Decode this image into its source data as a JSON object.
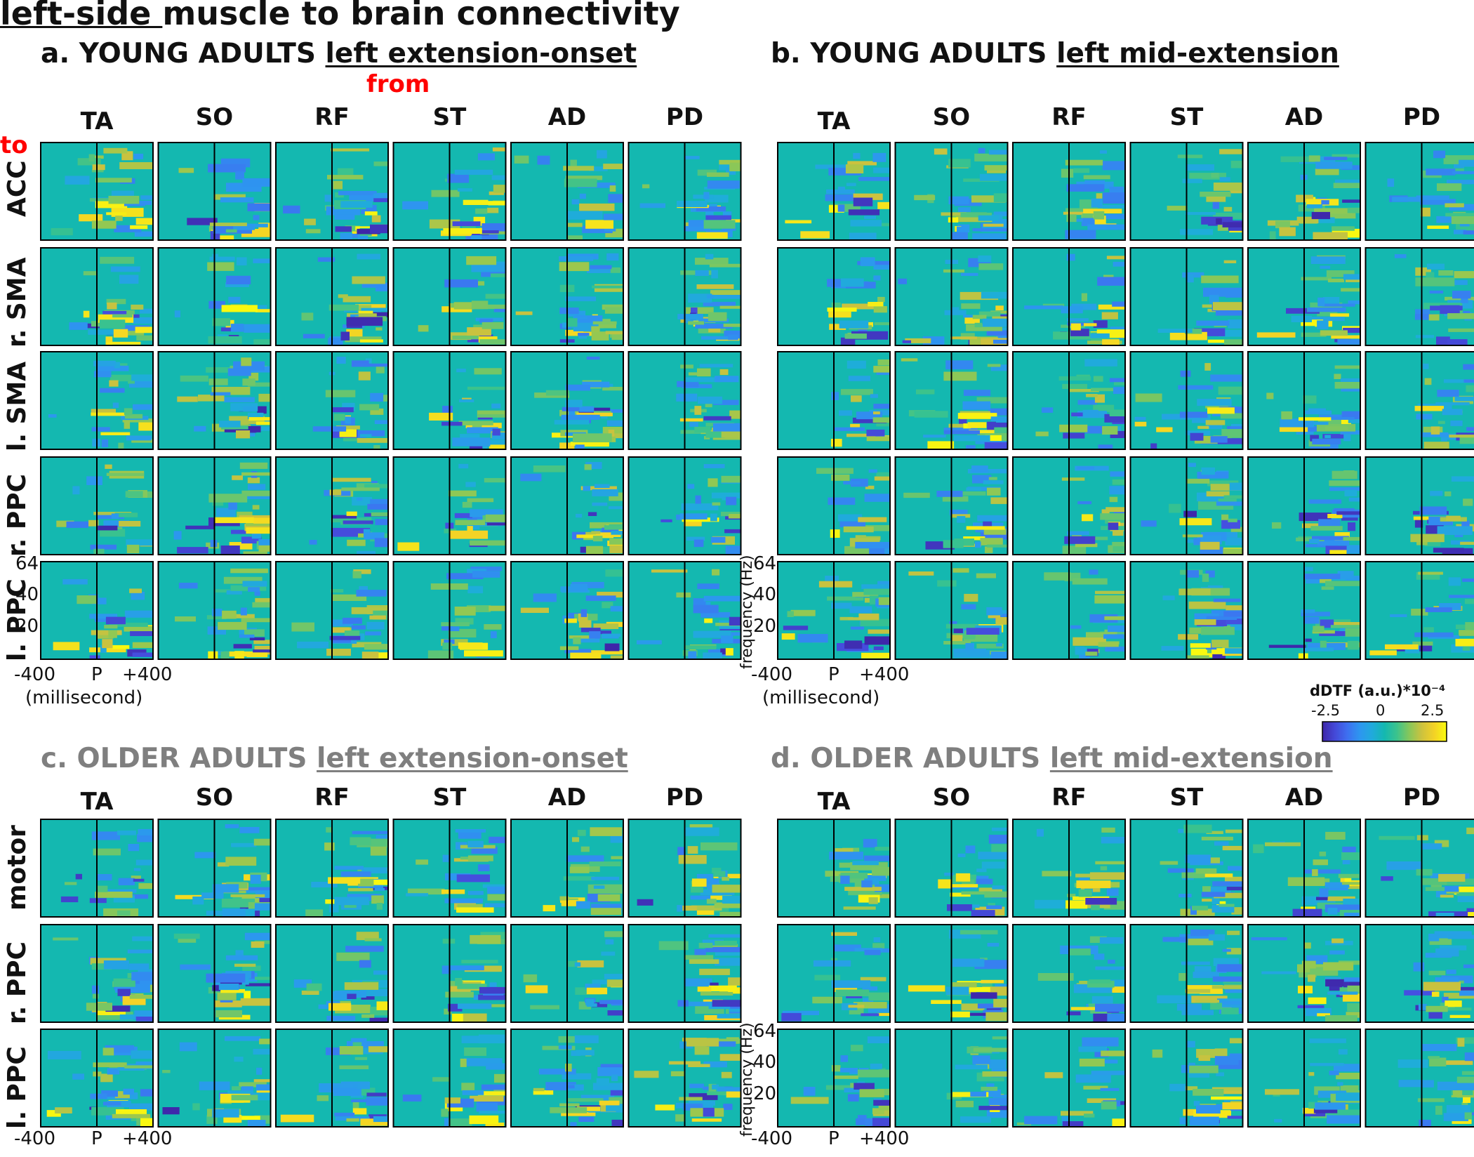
{
  "figure_title_underlined": "left-side ",
  "figure_title_rest": "muscle to brain connectivity",
  "from_label": "from",
  "to_label": "to",
  "colors": {
    "low": "#3e26a8",
    "mid": "#12b5b0",
    "high": "#f9fb0e",
    "background_cell": "#14b8b0"
  },
  "colorbar": {
    "label": "dDTF (a.u.)*10⁻⁴",
    "ticks": [
      "-2.5",
      "0",
      "2.5"
    ],
    "range": [
      -2.5,
      2.5
    ],
    "colormap": "parula"
  },
  "x_axis": {
    "ticks": [
      "-400",
      "P",
      "+400"
    ],
    "unit": "(millisecond)"
  },
  "y_axis": {
    "label": "frequency (Hz)",
    "ticks": [
      "64",
      "40",
      "20"
    ]
  },
  "panels": [
    {
      "letter": "a.",
      "group": "YOUNG ADULTS ",
      "condition": "left extension-onset",
      "grey": false,
      "columns": [
        "TA",
        "SO",
        "RF",
        "ST",
        "AD",
        "PD"
      ],
      "rows": [
        "ACC",
        "r. SMA",
        "l. SMA",
        "r. PPC",
        "l. PPC"
      ]
    },
    {
      "letter": "b.",
      "group": "YOUNG ADULTS ",
      "condition": "left mid-extension",
      "grey": false,
      "columns": [
        "TA",
        "SO",
        "RF",
        "ST",
        "AD",
        "PD"
      ],
      "rows": [
        "ACC",
        "r. SMA",
        "l. SMA",
        "r. PPC",
        "l. PPC"
      ]
    },
    {
      "letter": "c.",
      "group": "OLDER ADULTS ",
      "condition": "left extension-onset",
      "grey": true,
      "columns": [
        "TA",
        "SO",
        "RF",
        "ST",
        "AD",
        "PD"
      ],
      "rows": [
        "motor",
        "r. PPC",
        "l. PPC"
      ]
    },
    {
      "letter": "d.",
      "group": "OLDER ADULTS ",
      "condition": "left mid-extension",
      "grey": true,
      "columns": [
        "TA",
        "SO",
        "RF",
        "ST",
        "AD",
        "PD"
      ],
      "rows": [
        "motor",
        "r. PPC",
        "l. PPC"
      ]
    }
  ],
  "chart_data": {
    "type": "heatmap",
    "title": "left-side muscle to brain connectivity",
    "description_units": {
      "x": "millisecond relative to P",
      "y": "frequency (Hz)",
      "value": "dDTF (a.u.)*10⁻⁴"
    },
    "xlim": [
      -400,
      400
    ],
    "ylim": [
      0,
      64
    ],
    "clim": [
      -2.5,
      2.5
    ],
    "facets": [
      {
        "panel": "a. YOUNG ADULTS left extension-onset",
        "from": [
          "TA",
          "SO",
          "RF",
          "ST",
          "AD",
          "PD"
        ],
        "to": [
          "ACC",
          "r. SMA",
          "l. SMA",
          "r. PPC",
          "l. PPC"
        ]
      },
      {
        "panel": "b. YOUNG ADULTS left mid-extension",
        "from": [
          "TA",
          "SO",
          "RF",
          "ST",
          "AD",
          "PD"
        ],
        "to": [
          "ACC",
          "r. SMA",
          "l. SMA",
          "r. PPC",
          "l. PPC"
        ]
      },
      {
        "panel": "c. OLDER ADULTS left extension-onset",
        "from": [
          "TA",
          "SO",
          "RF",
          "ST",
          "AD",
          "PD"
        ],
        "to": [
          "motor",
          "r. PPC",
          "l. PPC"
        ]
      },
      {
        "panel": "d. OLDER ADULTS left mid-extension",
        "from": [
          "TA",
          "SO",
          "RF",
          "ST",
          "AD",
          "PD"
        ],
        "to": [
          "motor",
          "r. PPC",
          "l. PPC"
        ]
      }
    ]
  }
}
